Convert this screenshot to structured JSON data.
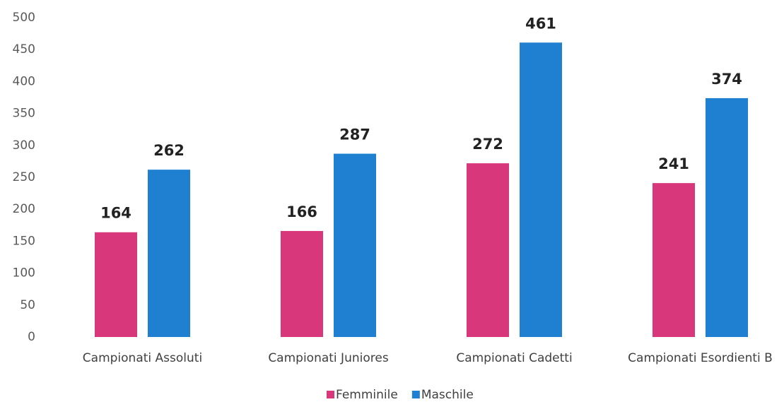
{
  "chart_data": {
    "type": "bar",
    "categories": [
      "Campionati Assoluti",
      "Campionati Juniores",
      "Campionati Cadetti",
      "Campionati Esordienti B"
    ],
    "series": [
      {
        "name": "Femminile",
        "color": "#d8377b",
        "values": [
          164,
          166,
          272,
          241
        ]
      },
      {
        "name": "Maschile",
        "color": "#1f80d2",
        "values": [
          262,
          287,
          461,
          374
        ]
      }
    ],
    "ylim": [
      0,
      500
    ],
    "yticks": [
      0,
      50,
      100,
      150,
      200,
      250,
      300,
      350,
      400,
      450,
      500
    ],
    "grid": false,
    "legend": "bottom"
  }
}
